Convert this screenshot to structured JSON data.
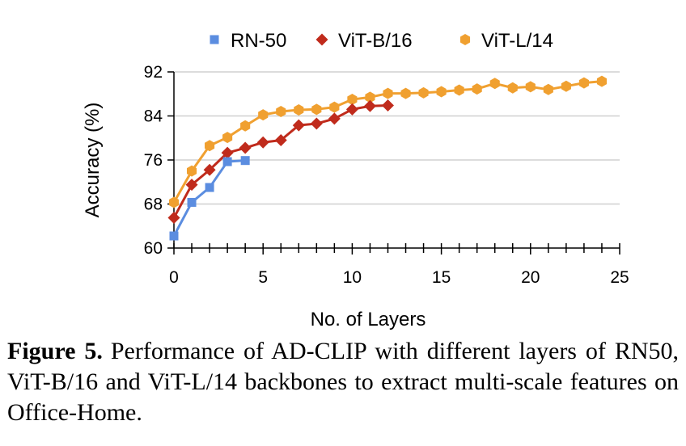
{
  "chart_data": {
    "type": "line",
    "xlabel": "No. of Layers",
    "ylabel": "Accuracy (%)",
    "xlim": [
      0,
      25
    ],
    "ylim": [
      60,
      92
    ],
    "xticks": [
      0,
      5,
      10,
      15,
      20,
      25
    ],
    "yticks": [
      60,
      68,
      76,
      84,
      92
    ],
    "grid": "horizontal",
    "legend_position": "top",
    "series": [
      {
        "name": "RN-50",
        "color": "#5b8de0",
        "marker": "square",
        "x": [
          0,
          1,
          2,
          3,
          4
        ],
        "values": [
          62.2,
          68.3,
          71.0,
          75.7,
          75.9
        ]
      },
      {
        "name": "ViT-B/16",
        "color": "#c02b1c",
        "marker": "diamond",
        "x": [
          0,
          1,
          2,
          3,
          4,
          5,
          6,
          7,
          8,
          9,
          10,
          11,
          12
        ],
        "values": [
          65.5,
          71.5,
          74.2,
          77.3,
          78.2,
          79.2,
          79.6,
          82.3,
          82.6,
          83.5,
          85.2,
          85.8,
          85.9
        ]
      },
      {
        "name": "ViT-L/14",
        "color": "#f0a030",
        "marker": "hexagon",
        "x": [
          0,
          1,
          2,
          3,
          4,
          5,
          6,
          7,
          8,
          9,
          10,
          11,
          12,
          13,
          14,
          15,
          16,
          17,
          18,
          19,
          20,
          21,
          22,
          23,
          24
        ],
        "values": [
          68.3,
          74.0,
          78.6,
          80.1,
          82.2,
          84.2,
          84.8,
          85.1,
          85.2,
          85.6,
          87.0,
          87.4,
          88.1,
          88.1,
          88.2,
          88.4,
          88.7,
          88.9,
          89.9,
          89.1,
          89.3,
          88.8,
          89.4,
          90.0,
          90.3
        ]
      }
    ]
  },
  "caption": {
    "label": "Figure 5.",
    "text": "Performance of AD-CLIP with different layers of RN50, ViT-B/16 and ViT-L/14 backbones to extract multi-scale features on Office-Home."
  }
}
